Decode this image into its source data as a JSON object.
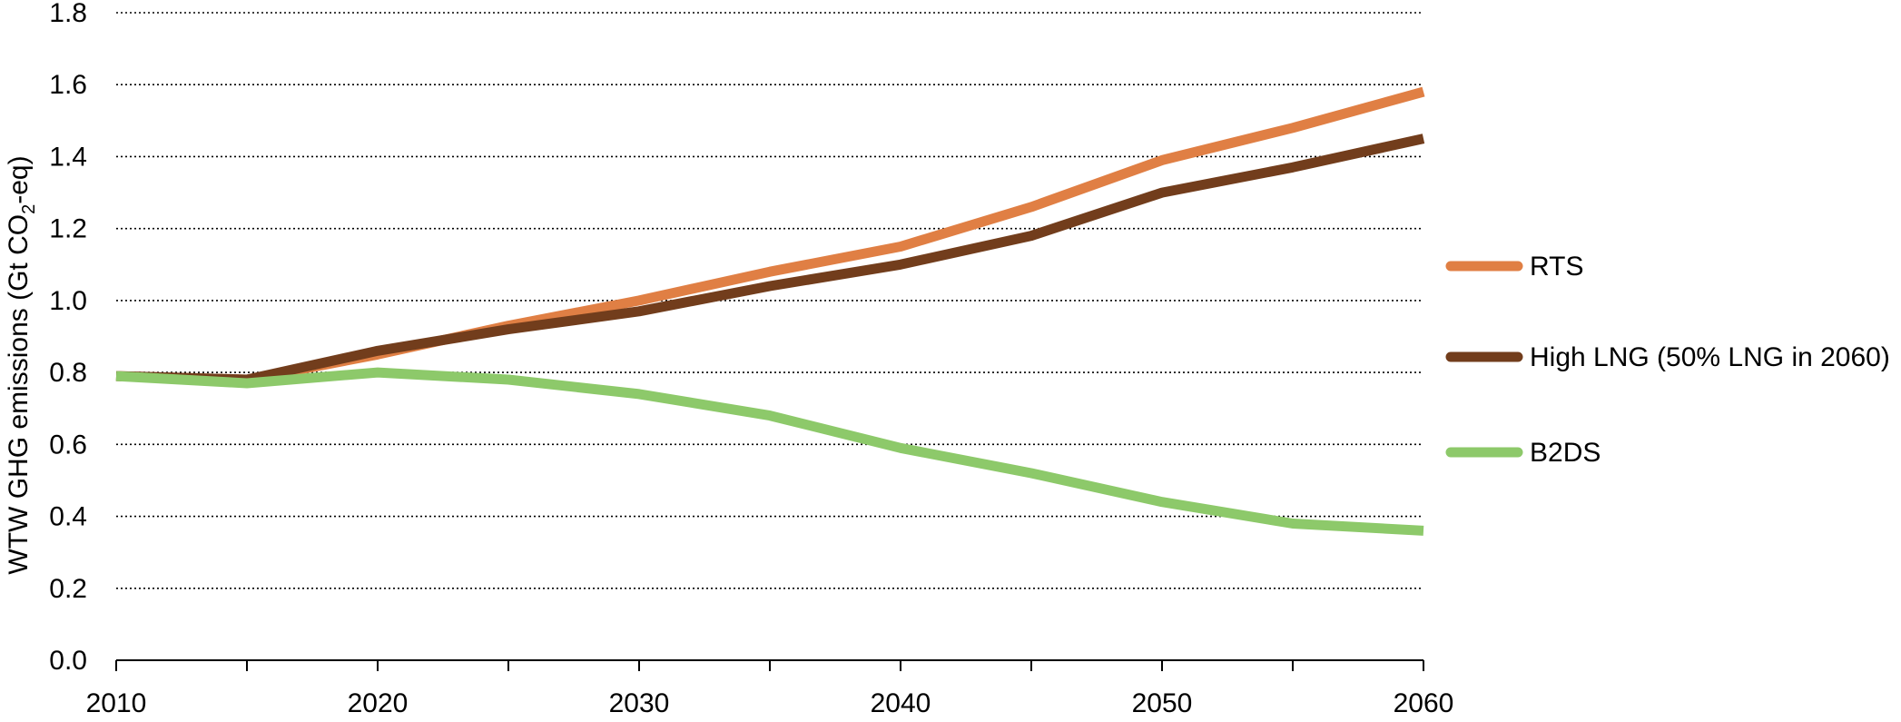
{
  "chart_data": {
    "type": "line",
    "title": "",
    "ylabel": {
      "main": "WTW GHG emissions (Gt CO",
      "subscript": "2",
      "suffix": "-eq)"
    },
    "xlabel": "",
    "ylim": [
      0,
      1.8
    ],
    "xlim": [
      2010,
      2060
    ],
    "y_ticks": [
      "0.0",
      "0.2",
      "0.4",
      "0.6",
      "0.8",
      "1.0",
      "1.2",
      "1.4",
      "1.6",
      "1.8"
    ],
    "x_ticks": [
      "2010",
      "2020",
      "2030",
      "2040",
      "2050",
      "2060"
    ],
    "grid": "horizontal-dotted",
    "legend_position": "right",
    "x": [
      2010,
      2015,
      2020,
      2025,
      2030,
      2035,
      2040,
      2045,
      2050,
      2055,
      2060
    ],
    "series": [
      {
        "name": "RTS",
        "color": "#e07f44",
        "values": [
          0.79,
          0.78,
          0.85,
          0.93,
          1.0,
          1.08,
          1.15,
          1.26,
          1.39,
          1.48,
          1.58
        ]
      },
      {
        "name": "High LNG (50% LNG in 2060)",
        "color": "#723d1c",
        "values": [
          0.79,
          0.78,
          0.86,
          0.92,
          0.97,
          1.04,
          1.1,
          1.18,
          1.3,
          1.37,
          1.45
        ]
      },
      {
        "name": "B2DS",
        "color": "#8dc96a",
        "values": [
          0.79,
          0.77,
          0.8,
          0.78,
          0.74,
          0.68,
          0.59,
          0.52,
          0.44,
          0.38,
          0.36
        ]
      }
    ]
  }
}
